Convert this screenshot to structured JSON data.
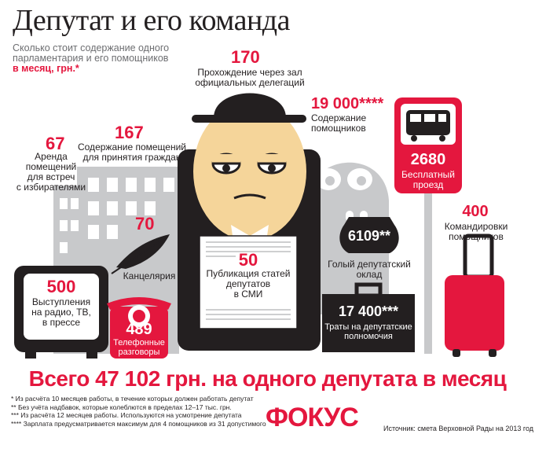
{
  "title": "Депутат и его команда",
  "subtitle_lines": [
    "Сколько стоит содержание одного",
    "парламентария и его помощников"
  ],
  "subtitle_emph": "в месяц, грн.*",
  "items": {
    "arenda": {
      "value": "67",
      "lines": [
        "Аренда",
        "помещений",
        "для встреч",
        "с избирателями"
      ]
    },
    "pomescheniya": {
      "value": "167",
      "lines": [
        "Содержание помещений",
        "для принятия граждан"
      ]
    },
    "zal": {
      "value": "170",
      "lines": [
        "Прохождение через зал",
        "официальных делегаций"
      ]
    },
    "pomoshniki": {
      "value": "19 000****",
      "lines": [
        "Содержание",
        "помощников"
      ]
    },
    "proezd": {
      "value": "2680",
      "lines": [
        "Бесплатный",
        "проезд"
      ]
    },
    "kancelyariya": {
      "value": "70",
      "lines": [
        "Канцелярия"
      ]
    },
    "publikaciya": {
      "value": "50",
      "lines": [
        "Публикация статей",
        "депутатов",
        "в СМИ"
      ]
    },
    "oklad": {
      "value": "6109**",
      "lines": [
        "Голый депутатский",
        "оклад"
      ]
    },
    "komandirovki": {
      "value": "400",
      "lines": [
        "Командировки",
        "помощников"
      ]
    },
    "vystupleniya": {
      "value": "500",
      "lines": [
        "Выступления",
        "на радио, ТВ,",
        "в прессе"
      ]
    },
    "telefon": {
      "value": "489",
      "lines": [
        "Телефонные",
        "разговоры"
      ]
    },
    "traty": {
      "value": "17 400***",
      "lines": [
        "Траты на депутатские",
        "полномочия"
      ]
    }
  },
  "total": "Всего 47 102 грн. на одного депутата в месяц",
  "footnotes": [
    "* Из расчёта 10 месяцев работы, в течение которых должен работать депутат",
    "** Без учёта надбавок, которые колеблются в пределах 12–17 тыс. грн.",
    "*** Из расчёта 12 месяцев работы. Используются на усмотрение депутата",
    "**** Зарплата предусматривается максимум для 4 помощников из 31 допустимого"
  ],
  "logo": "ФОКУС",
  "source": "Источник: смета Верховной Рады на 2013 год",
  "colors": {
    "accent": "#e4173e",
    "dark": "#231f20",
    "grey": "#c8c9cb",
    "skin": "#f5d59a"
  }
}
